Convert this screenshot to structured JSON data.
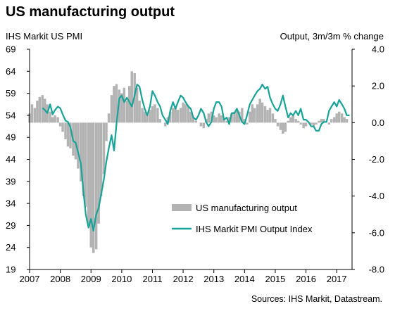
{
  "header": {
    "title": "US manufacturing output",
    "left_axis_label": "IHS Markit US PMI",
    "right_axis_label": "Output, 3m/3m % change"
  },
  "footer": {
    "source": "Sources: IHS Markit, Datastream."
  },
  "colors": {
    "bars": "#b3b3b3",
    "line": "#17a398",
    "axis": "#000000"
  },
  "chart_data": {
    "type": "bar+line",
    "left_axis": {
      "min": 19,
      "max": 69,
      "ticks": [
        "19",
        "24",
        "29",
        "34",
        "39",
        "44",
        "49",
        "54",
        "59",
        "64",
        "69"
      ]
    },
    "right_axis": {
      "min": -8.0,
      "max": 4.0,
      "ticks": [
        "-8.0",
        "-6.0",
        "-4.0",
        "-2.0",
        "0.0",
        "2.0",
        "4.0"
      ]
    },
    "x_axis": {
      "start": 2007.0,
      "end": 2017.5,
      "ticks": [
        "2007",
        "2008",
        "2009",
        "2010",
        "2011",
        "2012",
        "2013",
        "2014",
        "2015",
        "2016",
        "2017"
      ]
    },
    "legend": [
      "US manufacturing output",
      "IHS Markit PMI Output Index"
    ],
    "series": [
      {
        "name": "US manufacturing output",
        "axis": "right",
        "kind": "bar",
        "points": [
          [
            2007.0,
            0.5
          ],
          [
            2007.08,
            1.0
          ],
          [
            2007.17,
            0.8
          ],
          [
            2007.25,
            1.2
          ],
          [
            2007.33,
            1.4
          ],
          [
            2007.42,
            1.5
          ],
          [
            2007.5,
            1.3
          ],
          [
            2007.58,
            1.0
          ],
          [
            2007.67,
            0.6
          ],
          [
            2007.75,
            0.3
          ],
          [
            2007.83,
            0.4
          ],
          [
            2007.92,
            0.3
          ],
          [
            2008.0,
            -0.2
          ],
          [
            2008.08,
            -0.5
          ],
          [
            2008.17,
            -0.9
          ],
          [
            2008.25,
            -1.3
          ],
          [
            2008.33,
            -1.4
          ],
          [
            2008.42,
            -1.8
          ],
          [
            2008.5,
            -2.0
          ],
          [
            2008.58,
            -2.5
          ],
          [
            2008.67,
            -3.2
          ],
          [
            2008.75,
            -4.0
          ],
          [
            2008.83,
            -4.6
          ],
          [
            2008.92,
            -5.5
          ],
          [
            2009.0,
            -6.8
          ],
          [
            2009.08,
            -7.1
          ],
          [
            2009.17,
            -6.9
          ],
          [
            2009.25,
            -5.5
          ],
          [
            2009.33,
            -4.0
          ],
          [
            2009.42,
            -2.8
          ],
          [
            2009.5,
            -1.0
          ],
          [
            2009.58,
            0.5
          ],
          [
            2009.67,
            1.5
          ],
          [
            2009.75,
            2.0
          ],
          [
            2009.83,
            2.1
          ],
          [
            2009.92,
            1.8
          ],
          [
            2010.0,
            1.6
          ],
          [
            2010.08,
            1.9
          ],
          [
            2010.17,
            1.2
          ],
          [
            2010.25,
            2.0
          ],
          [
            2010.33,
            2.8
          ],
          [
            2010.42,
            2.7
          ],
          [
            2010.5,
            1.9
          ],
          [
            2010.58,
            1.2
          ],
          [
            2010.67,
            0.8
          ],
          [
            2010.75,
            0.6
          ],
          [
            2010.83,
            0.5
          ],
          [
            2010.92,
            0.7
          ],
          [
            2011.0,
            0.9
          ],
          [
            2011.08,
            1.0
          ],
          [
            2011.17,
            0.8
          ],
          [
            2011.25,
            0.2
          ],
          [
            2011.33,
            0.0
          ],
          [
            2011.42,
            -0.2
          ],
          [
            2011.5,
            0.3
          ],
          [
            2011.58,
            0.6
          ],
          [
            2011.67,
            0.8
          ],
          [
            2011.75,
            0.9
          ],
          [
            2011.83,
            0.7
          ],
          [
            2011.92,
            0.8
          ],
          [
            2012.0,
            1.1
          ],
          [
            2012.08,
            1.0
          ],
          [
            2012.17,
            0.9
          ],
          [
            2012.25,
            0.6
          ],
          [
            2012.33,
            0.3
          ],
          [
            2012.42,
            0.1
          ],
          [
            2012.5,
            0.0
          ],
          [
            2012.58,
            -0.2
          ],
          [
            2012.67,
            -0.3
          ],
          [
            2012.75,
            0.2
          ],
          [
            2012.83,
            0.5
          ],
          [
            2012.92,
            0.6
          ],
          [
            2013.0,
            0.4
          ],
          [
            2013.08,
            0.3
          ],
          [
            2013.17,
            0.5
          ],
          [
            2013.25,
            0.4
          ],
          [
            2013.33,
            0.2
          ],
          [
            2013.42,
            0.1
          ],
          [
            2013.5,
            0.3
          ],
          [
            2013.58,
            0.5
          ],
          [
            2013.67,
            0.6
          ],
          [
            2013.75,
            0.7
          ],
          [
            2013.83,
            0.6
          ],
          [
            2013.92,
            0.8
          ],
          [
            2014.0,
            0.2
          ],
          [
            2014.08,
            -0.1
          ],
          [
            2014.17,
            0.6
          ],
          [
            2014.25,
            1.0
          ],
          [
            2014.33,
            0.8
          ],
          [
            2014.42,
            1.0
          ],
          [
            2014.5,
            1.3
          ],
          [
            2014.58,
            1.1
          ],
          [
            2014.67,
            0.9
          ],
          [
            2014.75,
            0.7
          ],
          [
            2014.83,
            0.8
          ],
          [
            2014.92,
            0.5
          ],
          [
            2015.0,
            0.2
          ],
          [
            2015.08,
            -0.2
          ],
          [
            2015.17,
            -0.4
          ],
          [
            2015.25,
            -0.6
          ],
          [
            2015.33,
            -0.5
          ],
          [
            2015.42,
            0.1
          ],
          [
            2015.5,
            0.3
          ],
          [
            2015.58,
            0.4
          ],
          [
            2015.67,
            0.2
          ],
          [
            2015.75,
            0.1
          ],
          [
            2015.83,
            -0.1
          ],
          [
            2015.92,
            -0.3
          ],
          [
            2016.0,
            -0.2
          ],
          [
            2016.08,
            0.0
          ],
          [
            2016.17,
            -0.1
          ],
          [
            2016.25,
            -0.2
          ],
          [
            2016.33,
            -0.1
          ],
          [
            2016.42,
            0.1
          ],
          [
            2016.5,
            0.2
          ],
          [
            2016.58,
            0.2
          ],
          [
            2016.67,
            0.0
          ],
          [
            2016.75,
            -0.1
          ],
          [
            2016.83,
            0.2
          ],
          [
            2016.92,
            0.3
          ],
          [
            2017.0,
            0.5
          ],
          [
            2017.08,
            0.6
          ],
          [
            2017.17,
            0.5
          ],
          [
            2017.25,
            0.3
          ],
          [
            2017.33,
            0.2
          ]
        ]
      },
      {
        "name": "IHS Markit PMI Output Index",
        "axis": "left",
        "kind": "line",
        "points": [
          [
            2007.42,
            55.7
          ],
          [
            2007.5,
            55.2
          ],
          [
            2007.58,
            54.5
          ],
          [
            2007.67,
            56.5
          ],
          [
            2007.75,
            54.2
          ],
          [
            2007.83,
            55.2
          ],
          [
            2007.92,
            56.0
          ],
          [
            2008.0,
            55.6
          ],
          [
            2008.08,
            54.2
          ],
          [
            2008.17,
            52.8
          ],
          [
            2008.25,
            52.5
          ],
          [
            2008.33,
            51.3
          ],
          [
            2008.42,
            48.2
          ],
          [
            2008.5,
            47.8
          ],
          [
            2008.58,
            45.6
          ],
          [
            2008.67,
            43.0
          ],
          [
            2008.75,
            37.0
          ],
          [
            2008.83,
            31.5
          ],
          [
            2008.92,
            28.5
          ],
          [
            2009.0,
            30.5
          ],
          [
            2009.08,
            27.8
          ],
          [
            2009.17,
            31.5
          ],
          [
            2009.25,
            33.0
          ],
          [
            2009.33,
            36.0
          ],
          [
            2009.42,
            39.5
          ],
          [
            2009.5,
            43.5
          ],
          [
            2009.58,
            46.5
          ],
          [
            2009.67,
            49.5
          ],
          [
            2009.75,
            46.0
          ],
          [
            2009.83,
            52.0
          ],
          [
            2009.92,
            57.8
          ],
          [
            2010.0,
            58.5
          ],
          [
            2010.08,
            57.0
          ],
          [
            2010.17,
            58.0
          ],
          [
            2010.25,
            57.0
          ],
          [
            2010.33,
            56.0
          ],
          [
            2010.42,
            58.5
          ],
          [
            2010.5,
            61.0
          ],
          [
            2010.58,
            60.5
          ],
          [
            2010.67,
            57.5
          ],
          [
            2010.75,
            55.5
          ],
          [
            2010.83,
            54.0
          ],
          [
            2010.92,
            56.0
          ],
          [
            2011.0,
            59.5
          ],
          [
            2011.08,
            58.5
          ],
          [
            2011.17,
            57.0
          ],
          [
            2011.25,
            56.0
          ],
          [
            2011.33,
            54.0
          ],
          [
            2011.42,
            53.0
          ],
          [
            2011.5,
            52.0
          ],
          [
            2011.58,
            55.0
          ],
          [
            2011.67,
            57.0
          ],
          [
            2011.75,
            55.5
          ],
          [
            2011.83,
            57.0
          ],
          [
            2011.92,
            58.5
          ],
          [
            2012.0,
            58.0
          ],
          [
            2012.08,
            57.0
          ],
          [
            2012.17,
            56.0
          ],
          [
            2012.25,
            55.5
          ],
          [
            2012.33,
            53.5
          ],
          [
            2012.42,
            53.0
          ],
          [
            2012.5,
            54.0
          ],
          [
            2012.58,
            55.5
          ],
          [
            2012.67,
            54.5
          ],
          [
            2012.75,
            52.5
          ],
          [
            2012.83,
            51.5
          ],
          [
            2012.92,
            52.5
          ],
          [
            2013.0,
            55.5
          ],
          [
            2013.08,
            57.0
          ],
          [
            2013.17,
            57.0
          ],
          [
            2013.25,
            56.0
          ],
          [
            2013.33,
            53.0
          ],
          [
            2013.42,
            53.5
          ],
          [
            2013.5,
            52.0
          ],
          [
            2013.58,
            54.5
          ],
          [
            2013.67,
            54.5
          ],
          [
            2013.75,
            55.5
          ],
          [
            2013.83,
            54.0
          ],
          [
            2013.92,
            52.5
          ],
          [
            2014.0,
            52.0
          ],
          [
            2014.08,
            54.0
          ],
          [
            2014.17,
            56.5
          ],
          [
            2014.25,
            57.5
          ],
          [
            2014.33,
            58.5
          ],
          [
            2014.42,
            59.5
          ],
          [
            2014.5,
            60.0
          ],
          [
            2014.58,
            61.0
          ],
          [
            2014.67,
            60.0
          ],
          [
            2014.75,
            60.5
          ],
          [
            2014.83,
            58.0
          ],
          [
            2014.92,
            56.5
          ],
          [
            2015.0,
            55.5
          ],
          [
            2015.08,
            55.0
          ],
          [
            2015.17,
            56.5
          ],
          [
            2015.25,
            58.5
          ],
          [
            2015.33,
            56.0
          ],
          [
            2015.42,
            53.5
          ],
          [
            2015.5,
            54.5
          ],
          [
            2015.58,
            54.0
          ],
          [
            2015.67,
            55.0
          ],
          [
            2015.75,
            54.0
          ],
          [
            2015.83,
            55.5
          ],
          [
            2015.92,
            53.0
          ],
          [
            2016.0,
            53.0
          ],
          [
            2016.08,
            52.5
          ],
          [
            2016.17,
            51.5
          ],
          [
            2016.25,
            51.5
          ],
          [
            2016.33,
            50.5
          ],
          [
            2016.42,
            50.5
          ],
          [
            2016.5,
            52.0
          ],
          [
            2016.58,
            52.5
          ],
          [
            2016.67,
            52.5
          ],
          [
            2016.75,
            55.0
          ],
          [
            2016.83,
            56.0
          ],
          [
            2016.92,
            57.0
          ],
          [
            2017.0,
            56.0
          ],
          [
            2017.08,
            57.5
          ],
          [
            2017.17,
            56.5
          ],
          [
            2017.25,
            55.5
          ],
          [
            2017.33,
            54.0
          ],
          [
            2017.42,
            54.0
          ]
        ]
      }
    ]
  }
}
